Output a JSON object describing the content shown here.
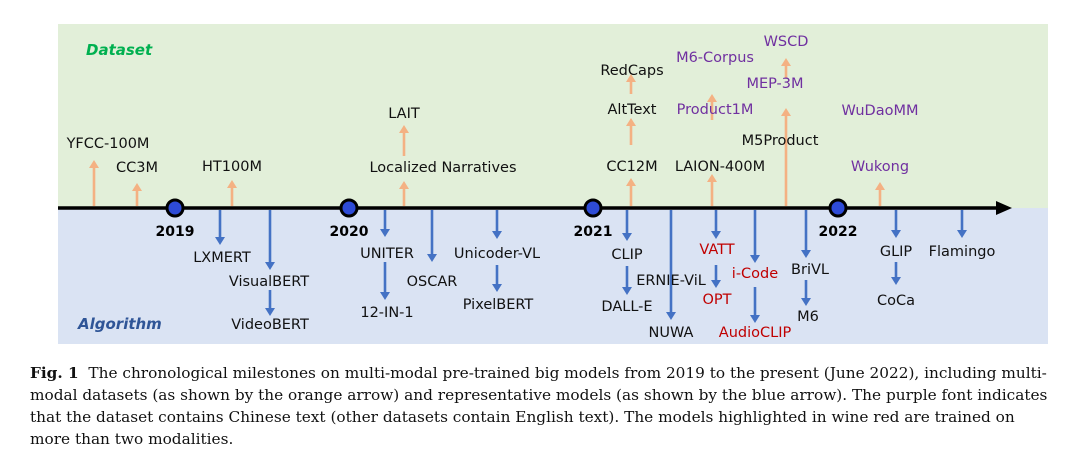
{
  "sections": {
    "dataset_label": "Dataset",
    "algorithm_label": "Algorithm"
  },
  "colors": {
    "dataset_bg": "#e2efd9",
    "algorithm_bg": "#dae3f3",
    "dataset_arrow": "#f4b183",
    "algorithm_arrow": "#4472c4",
    "dataset_label": "#00b050",
    "algorithm_label": "#2f5597",
    "text_default": "#111111",
    "text_chinese": "#7030a0",
    "text_multimodal": "#c00000",
    "axis": "#000000",
    "year_dot": "#2e4bd6"
  },
  "years": [
    "2019",
    "2020",
    "2021",
    "2022"
  ],
  "datasets": [
    "YFCC-100M",
    "CC3M",
    "HT100M",
    "LAIT",
    "Localized Narratives",
    "RedCaps",
    "AltText",
    "CC12M",
    "M6-Corpus",
    "Product1M",
    "LAION-400M",
    "WSCD",
    "MEP-3M",
    "M5Product",
    "WuDaoMM",
    "Wukong"
  ],
  "models": [
    "LXMERT",
    "VisualBERT",
    "VideoBERT",
    "UNITER",
    "12-IN-1",
    "OSCAR",
    "Unicoder-VL",
    "PixelBERT",
    "CLIP",
    "DALL-E",
    "ERNIE-ViL",
    "NUWA",
    "VATT",
    "OPT",
    "i-Code",
    "AudioCLIP",
    "BriVL",
    "M6",
    "GLIP",
    "CoCa",
    "Flamingo"
  ],
  "caption": {
    "label": "Fig. 1",
    "text": "The chronological milestones on multi-modal pre-trained big models from 2019 to the present (June 2022), including multi-modal datasets (as shown by the orange arrow) and representative models (as shown by the blue arrow). The purple font indicates that the dataset contains Chinese text (other datasets contain English text). The models highlighted in wine red are trained on more than two modalities."
  }
}
